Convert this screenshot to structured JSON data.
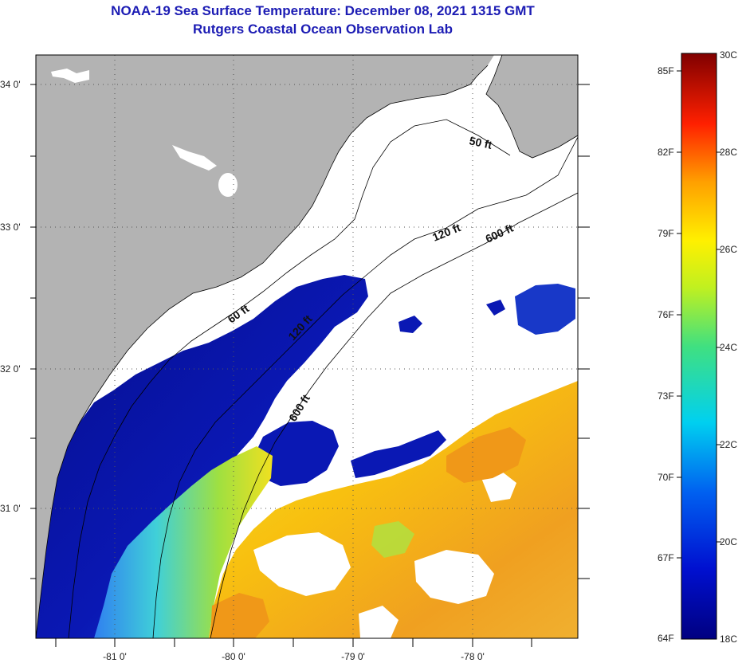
{
  "title": {
    "line1": "NOAA-19 Sea Surface Temperature:  December 08, 2021 1315 GMT",
    "line2": "Rutgers Coastal Ocean Observation Lab"
  },
  "axes": {
    "lat_labels": [
      "34 0'",
      "33 0'",
      "32 0'",
      "31 0'"
    ],
    "lon_labels": [
      "-81 0'",
      "-80 0'",
      "-79 0'",
      "-78 0'"
    ]
  },
  "contours": {
    "label_50_north": "50 ft",
    "label_120": "120 ft",
    "label_600_north": "600 ft",
    "label_60": "60 ft",
    "label_120_mid": "120 ft",
    "label_600_mid": "600 ft"
  },
  "colorbar": {
    "fahrenheit": [
      "85F",
      "82F",
      "79F",
      "76F",
      "73F",
      "70F",
      "67F",
      "64F"
    ],
    "celsius": [
      "30C",
      "28C",
      "26C",
      "24C",
      "22C",
      "20C",
      "18C"
    ]
  },
  "colors": {
    "land": "#b3b3b3",
    "cloud": "#ffffff",
    "title": "#1c1cb4",
    "cold": "#0a14a0",
    "warm": "#f0a020"
  }
}
